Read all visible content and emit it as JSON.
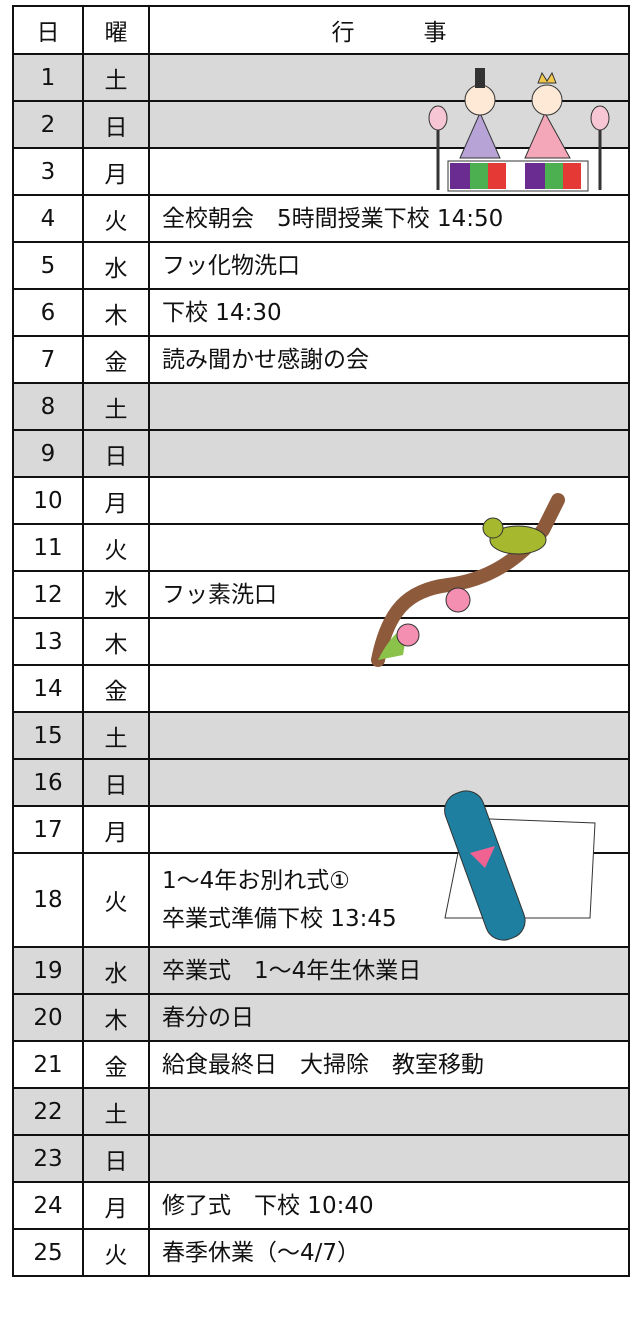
{
  "table": {
    "header": [
      "日",
      "曜",
      "行　　　事"
    ],
    "rows": [
      {
        "day": "1",
        "weekday": "土",
        "events": [],
        "shaded": true
      },
      {
        "day": "2",
        "weekday": "日",
        "events": [],
        "shaded": true
      },
      {
        "day": "3",
        "weekday": "月",
        "events": [],
        "shaded": false
      },
      {
        "day": "4",
        "weekday": "火",
        "events": [
          "全校朝会　5時間授業下校 14:50"
        ],
        "shaded": false
      },
      {
        "day": "5",
        "weekday": "水",
        "events": [
          "フッ化物洗口"
        ],
        "shaded": false
      },
      {
        "day": "6",
        "weekday": "木",
        "events": [
          "下校 14:30"
        ],
        "shaded": false
      },
      {
        "day": "7",
        "weekday": "金",
        "events": [
          "読み聞かせ感謝の会"
        ],
        "shaded": false
      },
      {
        "day": "8",
        "weekday": "土",
        "events": [],
        "shaded": true
      },
      {
        "day": "9",
        "weekday": "日",
        "events": [],
        "shaded": true
      },
      {
        "day": "10",
        "weekday": "月",
        "events": [],
        "shaded": false
      },
      {
        "day": "11",
        "weekday": "火",
        "events": [],
        "shaded": false
      },
      {
        "day": "12",
        "weekday": "水",
        "events": [
          "フッ素洗口"
        ],
        "shaded": false
      },
      {
        "day": "13",
        "weekday": "木",
        "events": [],
        "shaded": false
      },
      {
        "day": "14",
        "weekday": "金",
        "events": [],
        "shaded": false
      },
      {
        "day": "15",
        "weekday": "土",
        "events": [],
        "shaded": true
      },
      {
        "day": "16",
        "weekday": "日",
        "events": [],
        "shaded": true
      },
      {
        "day": "17",
        "weekday": "月",
        "events": [],
        "shaded": false
      },
      {
        "day": "18",
        "weekday": "火",
        "events": [
          "1～4年お別れ式①",
          "卒業式準備下校 13:45"
        ],
        "shaded": false
      },
      {
        "day": "19",
        "weekday": "水",
        "events": [
          "卒業式　1～4年生休業日"
        ],
        "shaded": true
      },
      {
        "day": "20",
        "weekday": "木",
        "events": [
          "春分の日"
        ],
        "shaded": true
      },
      {
        "day": "21",
        "weekday": "金",
        "events": [
          "給食最終日　大掃除　教室移動"
        ],
        "shaded": false
      },
      {
        "day": "22",
        "weekday": "土",
        "events": [],
        "shaded": true
      },
      {
        "day": "23",
        "weekday": "日",
        "events": [],
        "shaded": true
      },
      {
        "day": "24",
        "weekday": "月",
        "events": [
          "修了式　下校 10:40"
        ],
        "shaded": false
      },
      {
        "day": "25",
        "weekday": "火",
        "events": [
          "春季休業（～4/7）"
        ],
        "shaded": false
      }
    ]
  }
}
